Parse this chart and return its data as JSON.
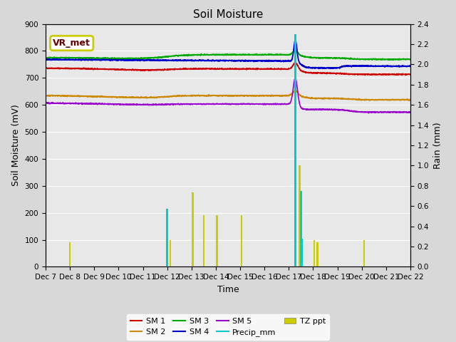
{
  "title": "Soil Moisture",
  "xlabel": "Time",
  "ylabel_left": "Soil Moisture (mV)",
  "ylabel_right": "Rain (mm)",
  "ylim_left": [
    0,
    900
  ],
  "ylim_right": [
    0.0,
    2.4
  ],
  "xtick_labels": [
    "Dec 7",
    "Dec 8",
    "Dec 9",
    "Dec 10",
    "Dec 11",
    "Dec 12",
    "Dec 13",
    "Dec 14",
    "Dec 15",
    "Dec 16",
    "Dec 17",
    "Dec 18",
    "Dec 19",
    "Dec 20",
    "Dec 21",
    "Dec 22"
  ],
  "background_color": "#d8d8d8",
  "plot_bg_color": "#e8e8e8",
  "sm1_color": "#cc0000",
  "sm2_color": "#cc8800",
  "sm3_color": "#00aa00",
  "sm4_color": "#0000cc",
  "sm5_color": "#9900cc",
  "precip_color": "#00cccc",
  "tzppt_color": "#cccc00",
  "vr_box_color": "#cccc00",
  "vr_text_color": "#660000",
  "legend_fontsize": 8,
  "title_fontsize": 11,
  "tick_fontsize": 7.5
}
